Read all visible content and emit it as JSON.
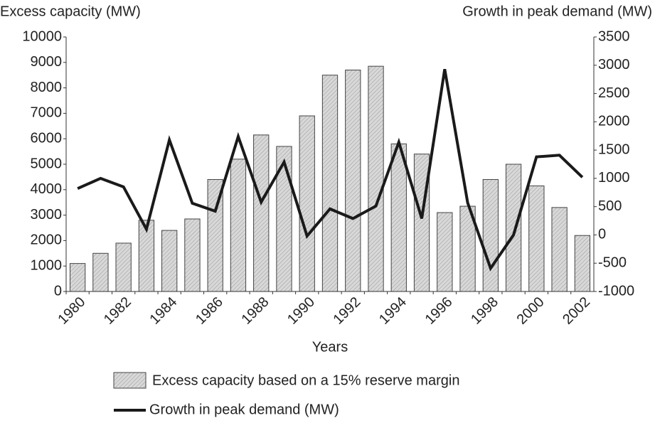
{
  "chart_data": {
    "type": "bar-line",
    "y_label": "Excess capacity (MW)",
    "y2_label": "Growth in peak demand (MW)",
    "x_label": "Years",
    "categories": [
      "1980",
      null,
      "1982",
      null,
      "1984",
      null,
      "1986",
      null,
      "1988",
      null,
      "1990",
      null,
      "1992",
      null,
      "1994",
      null,
      "1996",
      null,
      "1998",
      null,
      "2000",
      null,
      "2002"
    ],
    "series": [
      {
        "name": "Excess capacity based on a 15% reserve margin",
        "type": "bar",
        "color": "#d8d8d8",
        "values": [
          1100,
          1500,
          1900,
          2800,
          2400,
          2850,
          4400,
          5200,
          6150,
          5700,
          6900,
          8500,
          8700,
          8850,
          5800,
          5400,
          3100,
          3350,
          4400,
          5000,
          4150,
          3300,
          2200
        ]
      },
      {
        "name": "Growth in peak demand (MW)",
        "type": "line",
        "axis": "y2",
        "color": "#1a1a1a",
        "values": [
          820,
          1000,
          850,
          100,
          1680,
          560,
          420,
          1740,
          580,
          1290,
          -20,
          460,
          290,
          510,
          1640,
          290,
          2930,
          570,
          -590,
          0,
          1380,
          1410,
          1020
        ]
      }
    ],
    "ylim": [
      0,
      10000
    ],
    "yticks": [
      0,
      1000,
      2000,
      3000,
      4000,
      5000,
      6000,
      7000,
      8000,
      9000,
      10000
    ],
    "y2lim": [
      -1000,
      3500
    ],
    "y2ticks": [
      -1000,
      -500,
      0,
      500,
      1000,
      1500,
      2000,
      2500,
      3000,
      3500
    ],
    "grid": false
  }
}
